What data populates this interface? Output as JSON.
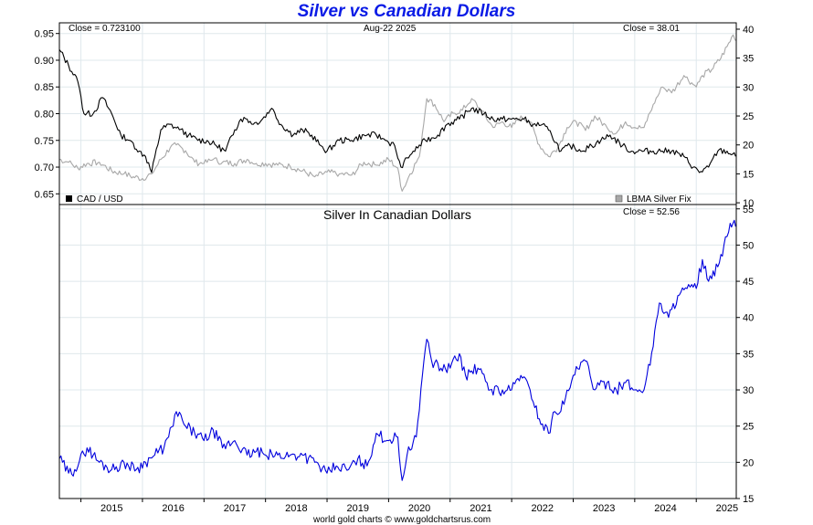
{
  "title": "Silver vs Canadian Dollars",
  "footer": "world gold charts © www.goldchartsrus.com",
  "colors": {
    "title": "#0a1be6",
    "cad": "#000000",
    "silver_usd": "#a8a8a8",
    "silver_cad": "#0000dd",
    "grid": "#dfe8ec"
  },
  "chart_data": [
    {
      "type": "line",
      "header_left": "Close = 0.723100",
      "header_center": "Aug-22  2025",
      "header_right": "Close = 38.01",
      "legend_left": "CAD / USD",
      "legend_right": "LBMA Silver Fix",
      "x_ticks": [
        "2015",
        "2016",
        "2017",
        "2018",
        "2019",
        "2020",
        "2021",
        "2022",
        "2023",
        "2024",
        "2025"
      ],
      "y_left_ticks": [
        "0.95",
        "0.90",
        "0.85",
        "0.80",
        "0.75",
        "0.70",
        "0.65"
      ],
      "y_right_ticks": [
        "40",
        "35",
        "30",
        "25",
        "20",
        "15",
        "10"
      ],
      "ylim_left": [
        0.63,
        0.97
      ],
      "ylim_right": [
        9.7,
        41.1
      ],
      "grid": true,
      "series": [
        {
          "name": "CAD / USD",
          "axis": "left",
          "x": [
            2014.65,
            2014.8,
            2014.95,
            2015.05,
            2015.2,
            2015.35,
            2015.5,
            2015.65,
            2015.8,
            2015.95,
            2016.05,
            2016.15,
            2016.3,
            2016.45,
            2016.6,
            2016.75,
            2016.9,
            2017.05,
            2017.2,
            2017.35,
            2017.5,
            2017.6,
            2017.7,
            2017.8,
            2017.95,
            2018.1,
            2018.25,
            2018.45,
            2018.6,
            2018.75,
            2018.9,
            2019.0,
            2019.2,
            2019.4,
            2019.6,
            2019.8,
            2019.95,
            2020.1,
            2020.2,
            2020.25,
            2020.4,
            2020.6,
            2020.8,
            2020.95,
            2021.15,
            2021.35,
            2021.55,
            2021.7,
            2021.85,
            2022.0,
            2022.2,
            2022.35,
            2022.5,
            2022.65,
            2022.8,
            2022.95,
            2023.15,
            2023.3,
            2023.45,
            2023.6,
            2023.8,
            2023.95,
            2024.15,
            2024.3,
            2024.45,
            2024.6,
            2024.8,
            2024.95,
            2025.05,
            2025.2,
            2025.35,
            2025.5,
            2025.64
          ],
          "y": [
            0.92,
            0.89,
            0.86,
            0.8,
            0.8,
            0.83,
            0.8,
            0.76,
            0.75,
            0.73,
            0.72,
            0.69,
            0.77,
            0.78,
            0.77,
            0.76,
            0.75,
            0.75,
            0.74,
            0.73,
            0.77,
            0.79,
            0.79,
            0.78,
            0.79,
            0.81,
            0.78,
            0.76,
            0.77,
            0.76,
            0.74,
            0.73,
            0.75,
            0.75,
            0.76,
            0.76,
            0.75,
            0.74,
            0.7,
            0.71,
            0.73,
            0.75,
            0.76,
            0.78,
            0.79,
            0.81,
            0.8,
            0.79,
            0.79,
            0.79,
            0.79,
            0.78,
            0.78,
            0.76,
            0.73,
            0.74,
            0.73,
            0.74,
            0.75,
            0.76,
            0.74,
            0.73,
            0.73,
            0.73,
            0.73,
            0.73,
            0.72,
            0.7,
            0.69,
            0.7,
            0.73,
            0.73,
            0.72
          ]
        },
        {
          "name": "LBMA Silver Fix",
          "axis": "right",
          "x": [
            2014.65,
            2014.8,
            2014.95,
            2015.1,
            2015.3,
            2015.5,
            2015.7,
            2015.85,
            2016.0,
            2016.15,
            2016.3,
            2016.45,
            2016.55,
            2016.7,
            2016.85,
            2017.0,
            2017.15,
            2017.3,
            2017.5,
            2017.7,
            2017.85,
            2018.0,
            2018.2,
            2018.4,
            2018.6,
            2018.8,
            2019.0,
            2019.2,
            2019.4,
            2019.6,
            2019.8,
            2020.0,
            2020.15,
            2020.22,
            2020.35,
            2020.5,
            2020.62,
            2020.75,
            2020.9,
            2021.05,
            2021.2,
            2021.35,
            2021.5,
            2021.7,
            2021.85,
            2022.0,
            2022.15,
            2022.3,
            2022.45,
            2022.6,
            2022.75,
            2022.9,
            2023.05,
            2023.2,
            2023.35,
            2023.55,
            2023.7,
            2023.85,
            2024.0,
            2024.15,
            2024.3,
            2024.45,
            2024.6,
            2024.8,
            2025.0,
            2025.1,
            2025.25,
            2025.4,
            2025.5,
            2025.6,
            2025.64
          ],
          "y": [
            17.5,
            17.0,
            16.0,
            16.8,
            17.0,
            15.5,
            15.0,
            14.5,
            14.2,
            15.0,
            17.5,
            19.5,
            20.0,
            19.0,
            17.0,
            16.8,
            17.5,
            17.0,
            16.8,
            17.5,
            16.8,
            16.8,
            16.5,
            16.3,
            15.5,
            14.5,
            15.3,
            15.0,
            14.8,
            17.0,
            16.5,
            17.5,
            16.0,
            12.0,
            15.0,
            18.0,
            28.0,
            27.0,
            24.0,
            25.5,
            26.0,
            28.0,
            26.0,
            23.0,
            24.0,
            23.0,
            25.0,
            24.0,
            20.0,
            18.0,
            19.5,
            23.0,
            24.0,
            22.5,
            25.0,
            23.0,
            22.0,
            24.0,
            23.0,
            23.0,
            27.0,
            30.0,
            29.0,
            32.0,
            30.0,
            32.0,
            33.0,
            35.0,
            37.0,
            39.0,
            38.0
          ]
        }
      ]
    },
    {
      "type": "line",
      "title": "Silver In Canadian Dollars",
      "header_right": "Close = 52.56",
      "x_ticks": [
        "2015",
        "2016",
        "2017",
        "2018",
        "2019",
        "2020",
        "2021",
        "2022",
        "2023",
        "2024",
        "2025"
      ],
      "y_right_ticks": [
        "55",
        "50",
        "45",
        "40",
        "35",
        "30",
        "25",
        "20",
        "15"
      ],
      "ylim_right": [
        15,
        55.6
      ],
      "grid": true,
      "series": [
        {
          "name": "",
          "axis": "right",
          "x": [
            2014.65,
            2014.8,
            2014.9,
            2015.1,
            2015.3,
            2015.5,
            2015.7,
            2015.9,
            2016.05,
            2016.2,
            2016.35,
            2016.5,
            2016.55,
            2016.7,
            2016.85,
            2017.0,
            2017.15,
            2017.3,
            2017.5,
            2017.7,
            2017.85,
            2018.0,
            2018.2,
            2018.4,
            2018.6,
            2018.8,
            2019.0,
            2019.15,
            2019.35,
            2019.5,
            2019.65,
            2019.8,
            2020.0,
            2020.15,
            2020.22,
            2020.3,
            2020.45,
            2020.55,
            2020.62,
            2020.7,
            2020.85,
            2021.0,
            2021.15,
            2021.25,
            2021.45,
            2021.65,
            2021.85,
            2022.0,
            2022.15,
            2022.3,
            2022.45,
            2022.6,
            2022.7,
            2022.85,
            2023.0,
            2023.2,
            2023.35,
            2023.55,
            2023.7,
            2023.85,
            2024.0,
            2024.15,
            2024.3,
            2024.4,
            2024.55,
            2024.7,
            2024.85,
            2025.0,
            2025.1,
            2025.2,
            2025.35,
            2025.45,
            2025.55,
            2025.64
          ],
          "y": [
            20.5,
            18.5,
            19.0,
            22.0,
            20.0,
            19.0,
            20.0,
            19.0,
            20.0,
            21.0,
            22.0,
            25.0,
            27.0,
            25.0,
            24.0,
            23.0,
            24.5,
            22.0,
            23.0,
            21.0,
            21.5,
            21.0,
            21.0,
            21.0,
            21.0,
            20.0,
            18.5,
            19.5,
            19.0,
            20.5,
            19.5,
            24.0,
            23.0,
            23.5,
            17.5,
            21.0,
            23.5,
            32.0,
            37.0,
            34.0,
            33.0,
            33.0,
            35.0,
            32.0,
            33.0,
            30.0,
            30.0,
            30.0,
            32.0,
            30.0,
            26.0,
            24.0,
            27.0,
            28.0,
            32.0,
            34.0,
            30.0,
            31.0,
            30.0,
            31.0,
            30.0,
            30.0,
            36.0,
            42.0,
            40.0,
            43.0,
            44.0,
            44.0,
            48.0,
            45.0,
            47.0,
            50.0,
            53.0,
            52.56
          ]
        }
      ]
    }
  ]
}
